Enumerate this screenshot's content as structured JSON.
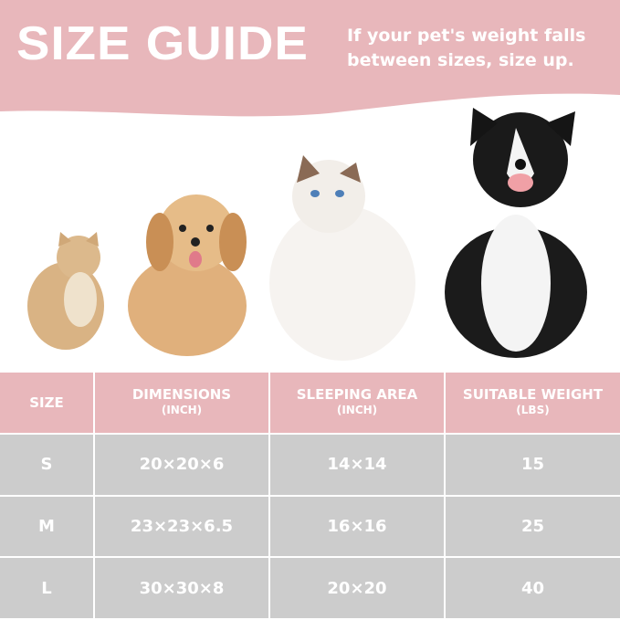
{
  "header": {
    "title": "SIZE GUIDE",
    "note_line1": "If your pet's weight falls",
    "note_line2": "between sizes, size up."
  },
  "colors": {
    "accent_pink": "#e8b7bb",
    "row_gray": "#cccccc"
  },
  "table": {
    "columns": [
      {
        "label": "SIZE",
        "unit": ""
      },
      {
        "label": "DIMENSIONS",
        "unit": "(INCH)"
      },
      {
        "label": "SLEEPING AREA",
        "unit": "(INCH)"
      },
      {
        "label": "SUITABLE WEIGHT",
        "unit": "(LBS)"
      }
    ],
    "rows": [
      [
        "S",
        "20×20×6",
        "14×14",
        "15"
      ],
      [
        "M",
        "23×23×6.5",
        "16×16",
        "25"
      ],
      [
        "L",
        "30×30×8",
        "20×20",
        "40"
      ]
    ]
  }
}
